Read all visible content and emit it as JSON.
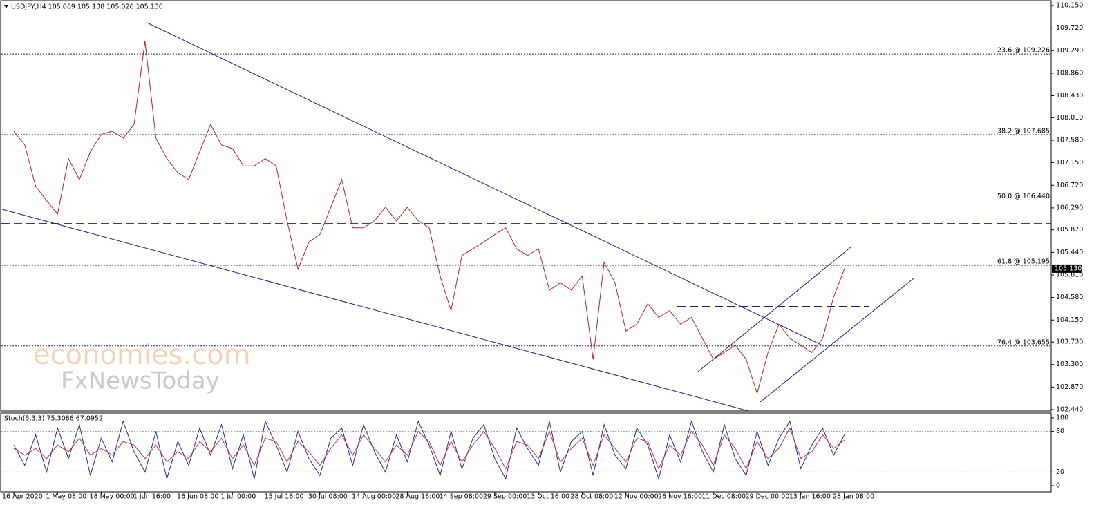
{
  "chart_data": [
    {
      "type": "line",
      "title": "USDJPY,H4  105.069 105.138 105.026 105.130",
      "categories": [
        "16 Apr 2020",
        null,
        null,
        null,
        "1 May 08:00",
        null,
        null,
        null,
        "18 May 00:00",
        null,
        null,
        null,
        "1 Jun 16:00",
        null,
        null,
        null,
        "16 Jun 08:00",
        null,
        null,
        null,
        "1 Jul 00:00",
        null,
        null,
        null,
        "15 Jul 16:00",
        null,
        null,
        null,
        "30 Jul 08:00",
        null,
        null,
        null,
        "14 Aug 00:00",
        null,
        null,
        null,
        "28 Aug 16:00",
        null,
        null,
        null,
        "14 Sep 08:00",
        null,
        null,
        null,
        "29 Sep 00:00",
        null,
        null,
        null,
        "13 Oct 16:00",
        null,
        null,
        null,
        "28 Oct 08:00",
        null,
        null,
        null,
        "12 Nov 00:00",
        null,
        null,
        null,
        "26 Nov 16:00",
        null,
        null,
        null,
        "11 Dec 08:00",
        null,
        null,
        null,
        "29 Dec 00:00",
        null,
        null,
        null,
        "13 Jan 16:00",
        null,
        null,
        null,
        "28 Jan 08:00"
      ],
      "series": [
        {
          "color": "#b22222",
          "values": [
            107.75,
            107.49,
            106.7,
            106.43,
            106.17,
            107.23,
            106.83,
            107.36,
            107.69,
            107.75,
            107.62,
            107.88,
            109.47,
            107.62,
            107.23,
            106.96,
            106.83,
            107.36,
            107.88,
            107.49,
            107.42,
            107.09,
            107.09,
            107.23,
            107.09,
            106.04,
            105.12,
            105.64,
            105.78,
            106.3,
            106.83,
            105.91,
            105.91,
            106.04,
            106.3,
            106.04,
            106.3,
            106.04,
            105.91,
            104.99,
            104.33,
            105.38,
            105.51,
            105.64,
            105.78,
            105.91,
            105.51,
            105.38,
            105.51,
            104.72,
            104.86,
            104.72,
            104.99,
            103.4,
            105.25,
            104.86,
            103.94,
            104.07,
            104.46,
            104.2,
            104.33,
            104.07,
            104.2,
            103.8,
            103.4,
            103.53,
            103.67,
            103.4,
            102.75,
            103.53,
            104.07,
            103.8,
            103.67,
            103.53,
            103.8,
            104.59,
            105.13
          ]
        }
      ],
      "ylim": [
        102.44,
        110.15
      ],
      "yticks": [
        {
          "value": 110.15,
          "label": "110.150"
        },
        {
          "value": 109.72,
          "label": "109.720"
        },
        {
          "value": 109.29,
          "label": "109.290"
        },
        {
          "value": 108.86,
          "label": "108.860"
        },
        {
          "value": 108.43,
          "label": "108.430"
        },
        {
          "value": 108.01,
          "label": "108.010"
        },
        {
          "value": 107.58,
          "label": "107.580"
        },
        {
          "value": 107.15,
          "label": "107.150"
        },
        {
          "value": 106.72,
          "label": "106.720"
        },
        {
          "value": 106.29,
          "label": "106.290"
        },
        {
          "value": 105.87,
          "label": "105.870"
        },
        {
          "value": 105.44,
          "label": "105.440"
        },
        {
          "value": 105.01,
          "label": "105.010"
        },
        {
          "value": 104.58,
          "label": "104.580"
        },
        {
          "value": 104.15,
          "label": "104.150"
        },
        {
          "value": 103.73,
          "label": "103.730"
        },
        {
          "value": 103.3,
          "label": "103.300"
        },
        {
          "value": 102.87,
          "label": "102.870"
        },
        {
          "value": 102.44,
          "label": "102.440"
        }
      ],
      "levels": [
        {
          "value": 109.226,
          "label": "23.6 @ 109.226"
        },
        {
          "value": 107.685,
          "label": "38.2 @ 107.685"
        },
        {
          "value": 106.44,
          "label": "50.0 @ 106.440"
        },
        {
          "value": 105.195,
          "label": "61.8 @ 105.195"
        },
        {
          "value": 103.655,
          "label": "76.4 @ 103.655"
        }
      ],
      "hlines": [
        105.99,
        104.41
      ],
      "price_tag": {
        "value": 105.13,
        "label": "105.130"
      }
    },
    {
      "type": "line",
      "title": "Stoch(5,3,3) 75.3086 67.0952",
      "series": [
        {
          "color": "#1f2a8c",
          "values": [
            60,
            30,
            75,
            20,
            85,
            40,
            90,
            15,
            70,
            35,
            95,
            50,
            20,
            80,
            10,
            65,
            30,
            85,
            45,
            90,
            25,
            75,
            10,
            95,
            60,
            20,
            80,
            40,
            15,
            70,
            85,
            30,
            90,
            50,
            20,
            75,
            35,
            95,
            60,
            15,
            80,
            25,
            70,
            90,
            40,
            10,
            85,
            55,
            30,
            95,
            20,
            65,
            80,
            15,
            90,
            45,
            25,
            85,
            60,
            10,
            75,
            35,
            95,
            50,
            20,
            90,
            40,
            15,
            80,
            30,
            70,
            95,
            25,
            60,
            85,
            45,
            75.3086
          ]
        },
        {
          "color": "#c0304a",
          "values": [
            55,
            45,
            55,
            40,
            60,
            50,
            70,
            45,
            55,
            45,
            65,
            60,
            40,
            60,
            35,
            50,
            40,
            65,
            50,
            70,
            40,
            60,
            30,
            70,
            65,
            35,
            65,
            50,
            30,
            55,
            75,
            45,
            75,
            55,
            35,
            60,
            45,
            80,
            65,
            30,
            65,
            35,
            60,
            80,
            55,
            25,
            65,
            60,
            40,
            80,
            35,
            55,
            70,
            30,
            75,
            55,
            35,
            70,
            65,
            25,
            60,
            45,
            80,
            60,
            30,
            75,
            55,
            25,
            65,
            40,
            55,
            85,
            40,
            50,
            75,
            55,
            67.0952
          ]
        }
      ],
      "ylim": [
        0,
        100
      ],
      "yticks": [
        0,
        20,
        80,
        100
      ]
    }
  ],
  "watermark": [
    "economies.com",
    "FxNewsToday"
  ]
}
